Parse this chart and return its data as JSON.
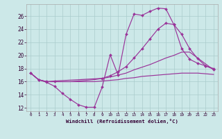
{
  "background_color": "#cce8e8",
  "grid_color": "#aacccc",
  "line_color": "#993399",
  "xlabel": "Windchill (Refroidissement éolien,°C)",
  "xlim": [
    -0.5,
    23.5
  ],
  "ylim": [
    11.5,
    27.8
  ],
  "yticks": [
    12,
    14,
    16,
    18,
    20,
    22,
    24,
    26
  ],
  "xticks": [
    0,
    1,
    2,
    3,
    4,
    5,
    6,
    7,
    8,
    9,
    10,
    11,
    12,
    13,
    14,
    15,
    16,
    17,
    18,
    19,
    20,
    21,
    22,
    23
  ],
  "curve1_x": [
    0,
    1,
    2,
    3,
    4,
    5,
    6,
    7,
    8,
    9,
    10,
    11,
    12,
    13,
    14,
    15,
    16,
    17,
    18,
    19,
    20,
    21,
    22,
    23
  ],
  "curve1_y": [
    17.3,
    16.3,
    15.9,
    15.3,
    14.2,
    13.3,
    12.5,
    12.1,
    12.1,
    15.2,
    20.1,
    17.0,
    23.2,
    26.3,
    26.1,
    26.7,
    27.2,
    27.1,
    24.7,
    21.0,
    19.4,
    18.8,
    18.4,
    18.0
  ],
  "curve2_x": [
    0,
    1,
    2,
    3,
    9,
    10,
    11,
    12,
    13,
    14,
    15,
    16,
    17,
    18,
    19,
    20,
    21,
    22,
    23
  ],
  "curve2_y": [
    17.3,
    16.3,
    16.0,
    16.1,
    16.5,
    16.9,
    17.5,
    18.3,
    19.6,
    21.0,
    22.5,
    24.0,
    24.9,
    24.7,
    23.2,
    21.0,
    19.5,
    18.4,
    17.9
  ],
  "curve3_x": [
    0,
    1,
    2,
    3,
    4,
    5,
    6,
    7,
    8,
    9,
    10,
    11,
    12,
    13,
    14,
    15,
    16,
    17,
    18,
    19,
    20,
    21,
    22,
    23
  ],
  "curve3_y": [
    17.3,
    16.3,
    16.0,
    16.0,
    16.0,
    16.0,
    16.1,
    16.2,
    16.3,
    16.5,
    16.7,
    17.0,
    17.3,
    17.8,
    18.2,
    18.6,
    19.1,
    19.6,
    20.0,
    20.5,
    20.5,
    19.6,
    18.7,
    17.8
  ],
  "curve4_x": [
    0,
    1,
    2,
    3,
    4,
    5,
    6,
    7,
    8,
    9,
    10,
    11,
    12,
    13,
    14,
    15,
    16,
    17,
    18,
    19,
    20,
    21,
    22,
    23
  ],
  "curve4_y": [
    17.3,
    16.3,
    16.0,
    16.0,
    16.0,
    16.0,
    16.0,
    16.0,
    16.0,
    16.1,
    16.2,
    16.3,
    16.5,
    16.6,
    16.8,
    16.9,
    17.0,
    17.1,
    17.2,
    17.3,
    17.3,
    17.3,
    17.2,
    17.1
  ]
}
